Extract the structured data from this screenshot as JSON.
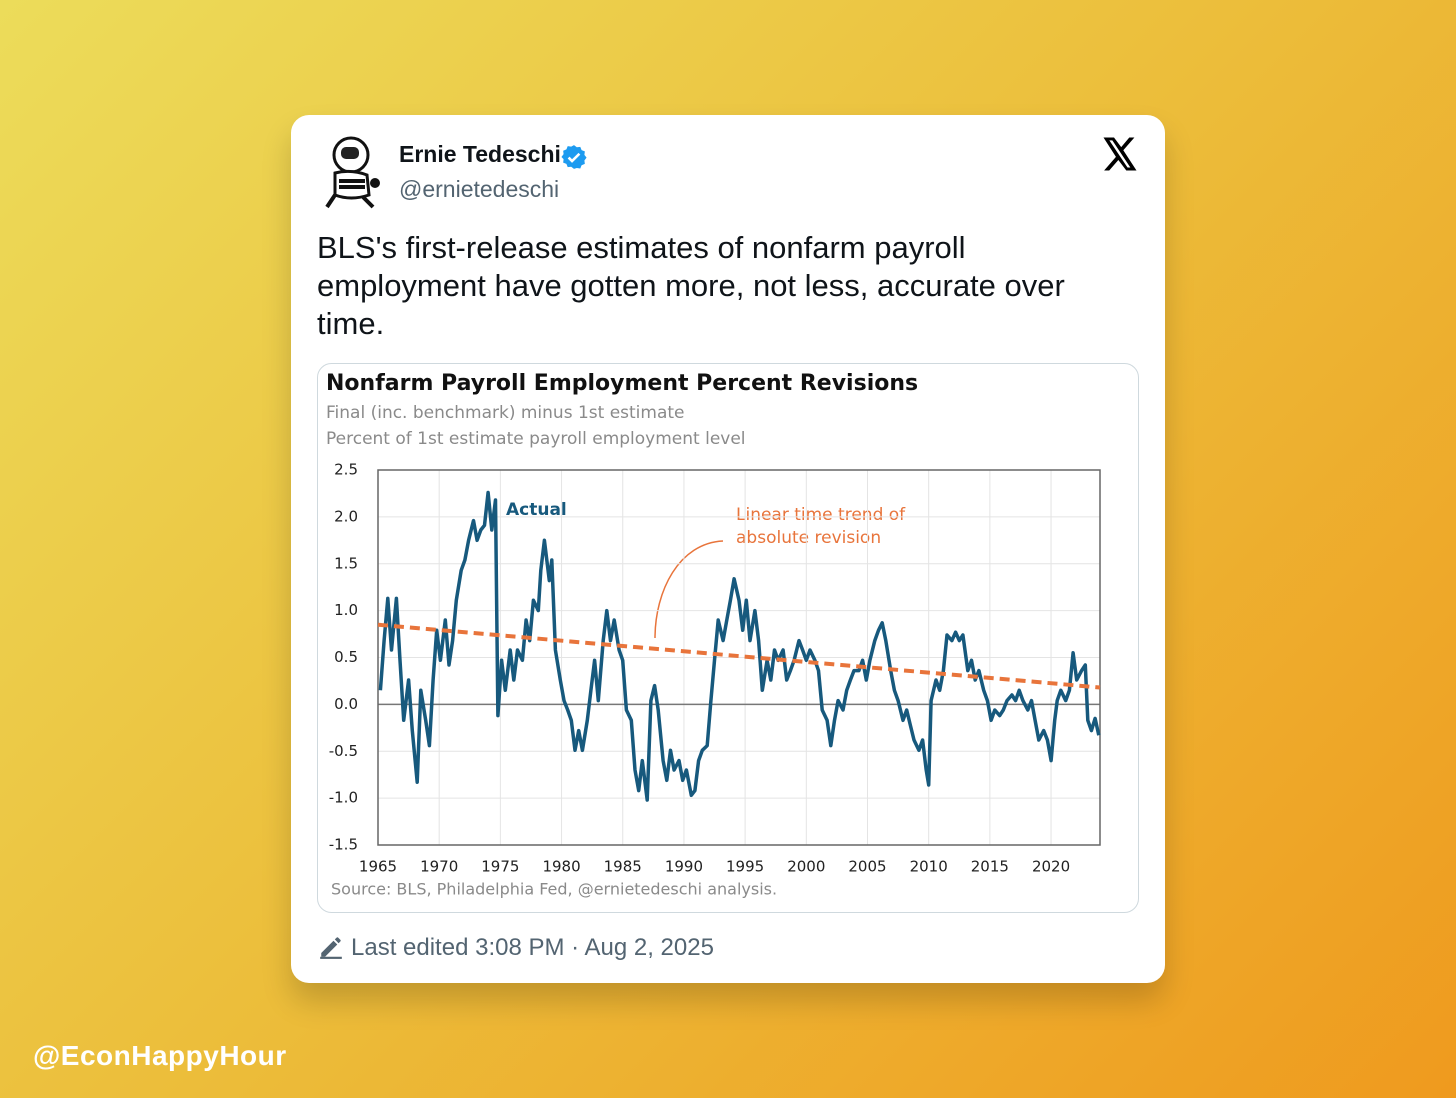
{
  "author": {
    "name": "Ernie Tedeschi",
    "handle": "@ernietedeschi"
  },
  "post_text": "BLS's first-release estimates of nonfarm payroll employment have gotten more, not less, accurate over time.",
  "footer": "Last edited 3:08 PM · Aug 2, 2025",
  "watermark": "@EconHappyHour",
  "chart_data": {
    "type": "line",
    "title": "Nonfarm Payroll Employment Percent Revisions",
    "subtitles": [
      "Final (inc. benchmark) minus 1st estimate",
      "Percent of 1st estimate payroll employment level"
    ],
    "source": "Source: BLS, Philadelphia Fed, @ernietedeschi analysis.",
    "annotations": [
      "Actual",
      "Linear time trend of",
      "absolute revision"
    ],
    "xlim": [
      1965,
      2024
    ],
    "xticks": [
      1965,
      1970,
      1975,
      1980,
      1985,
      1990,
      1995,
      2000,
      2005,
      2010,
      2015,
      2020
    ],
    "ylim": [
      -1.5,
      2.5
    ],
    "yticks": [
      2.5,
      {
        "value": 2,
        "label": "2.0"
      },
      1.5,
      {
        "value": 1,
        "label": "1.0"
      },
      0.5,
      {
        "value": 0,
        "label": "0.0"
      },
      -0.5,
      {
        "value": -1,
        "label": "-1.0"
      },
      -1.5
    ],
    "grid": true,
    "series": [
      {
        "color": "#17597d",
        "dash": false,
        "x": [
          1965.2,
          1965.5,
          1965.8,
          1966.1,
          1966.5,
          1966.8,
          1967.1,
          1967.5,
          1967.8,
          1968.2,
          1968.5,
          1968.9,
          1969.2,
          1969.5,
          1969.8,
          1970.1,
          1970.5,
          1970.8,
          1971.1,
          1971.4,
          1971.8,
          1972.1,
          1972.4,
          1972.8,
          1973.1,
          1973.4,
          1973.7,
          1974.0,
          1974.3,
          1974.6,
          1974.8,
          1975.1,
          1975.4,
          1975.8,
          1976.1,
          1976.4,
          1976.8,
          1977.1,
          1977.4,
          1977.7,
          1978.1,
          1978.3,
          1978.6,
          1979.0,
          1979.2,
          1979.5,
          1979.9,
          1980.2,
          1980.5,
          1980.8,
          1981.1,
          1981.4,
          1981.7,
          1982.1,
          1982.4,
          1982.7,
          1983.0,
          1983.4,
          1983.7,
          1984.0,
          1984.3,
          1984.7,
          1985.0,
          1985.3,
          1985.7,
          1986.0,
          1986.3,
          1986.6,
          1987.0,
          1987.3,
          1987.6,
          1987.9,
          1988.3,
          1988.6,
          1988.9,
          1989.2,
          1989.6,
          1989.9,
          1990.2,
          1990.6,
          1990.9,
          1991.2,
          1991.5,
          1991.9,
          1992.2,
          1992.5,
          1992.8,
          1993.2,
          1993.5,
          1993.8,
          1994.1,
          1994.5,
          1994.8,
          1995.1,
          1995.4,
          1995.8,
          1996.1,
          1996.4,
          1996.8,
          1997.1,
          1997.4,
          1997.7,
          1998.1,
          1998.4,
          1998.7,
          1999.0,
          1999.4,
          1999.7,
          2000.0,
          2000.3,
          2000.7,
          2001.0,
          2001.3,
          2001.7,
          2002.0,
          2002.3,
          2002.6,
          2003.0,
          2003.3,
          2003.6,
          2003.9,
          2004.3,
          2004.6,
          2004.9,
          2005.2,
          2005.6,
          2005.9,
          2006.2,
          2006.5,
          2006.9,
          2007.2,
          2007.5,
          2007.9,
          2008.2,
          2008.5,
          2008.8,
          2009.2,
          2009.5,
          2009.8,
          2010.0,
          2010.2,
          2010.6,
          2010.9,
          2011.2,
          2011.5,
          2011.9,
          2012.2,
          2012.5,
          2012.8,
          2013.2,
          2013.5,
          2013.8,
          2014.1,
          2014.5,
          2014.8,
          2015.1,
          2015.4,
          2015.8,
          2016.1,
          2016.4,
          2016.8,
          2017.1,
          2017.4,
          2017.7,
          2018.1,
          2018.4,
          2018.7,
          2019.0,
          2019.4,
          2019.7,
          2020.0,
          2020.3,
          2020.5,
          2020.8,
          2021.2,
          2021.5,
          2021.8,
          2022.1,
          2022.5,
          2022.8,
          2023.0,
          2023.3,
          2023.6,
          2023.9
        ],
        "values": [
          0.15,
          0.68,
          1.13,
          0.58,
          1.13,
          0.47,
          -0.17,
          0.26,
          -0.28,
          -0.83,
          0.15,
          -0.17,
          -0.44,
          0.26,
          0.79,
          0.47,
          0.9,
          0.42,
          0.68,
          1.11,
          1.43,
          1.54,
          1.75,
          1.96,
          1.75,
          1.86,
          1.91,
          2.26,
          1.86,
          2.18,
          -0.12,
          0.47,
          0.15,
          0.58,
          0.26,
          0.58,
          0.47,
          0.9,
          0.68,
          1.11,
          1.0,
          1.43,
          1.75,
          1.32,
          1.54,
          0.58,
          0.26,
          0.04,
          -0.06,
          -0.17,
          -0.49,
          -0.28,
          -0.49,
          -0.17,
          0.15,
          0.47,
          0.04,
          0.68,
          1.0,
          0.68,
          0.9,
          0.58,
          0.47,
          -0.06,
          -0.17,
          -0.7,
          -0.92,
          -0.6,
          -1.02,
          0.04,
          0.2,
          -0.06,
          -0.6,
          -0.81,
          -0.49,
          -0.7,
          -0.6,
          -0.81,
          -0.7,
          -0.97,
          -0.92,
          -0.6,
          -0.49,
          -0.44,
          0.04,
          0.47,
          0.9,
          0.68,
          0.9,
          1.11,
          1.34,
          1.11,
          0.79,
          1.11,
          0.68,
          1.0,
          0.68,
          0.15,
          0.47,
          0.26,
          0.58,
          0.47,
          0.58,
          0.26,
          0.36,
          0.47,
          0.68,
          0.58,
          0.47,
          0.58,
          0.47,
          0.36,
          -0.06,
          -0.17,
          -0.44,
          -0.17,
          0.04,
          -0.06,
          0.15,
          0.26,
          0.36,
          0.36,
          0.47,
          0.26,
          0.47,
          0.68,
          0.79,
          0.87,
          0.68,
          0.36,
          0.15,
          0.04,
          -0.17,
          -0.06,
          -0.22,
          -0.38,
          -0.49,
          -0.38,
          -0.7,
          -0.86,
          0.04,
          0.26,
          0.15,
          0.36,
          0.74,
          0.68,
          0.77,
          0.68,
          0.74,
          0.36,
          0.47,
          0.26,
          0.36,
          0.15,
          0.04,
          -0.17,
          -0.06,
          -0.12,
          -0.06,
          0.04,
          0.1,
          0.04,
          0.15,
          0.04,
          -0.06,
          0.04,
          -0.17,
          -0.38,
          -0.28,
          -0.38,
          -0.6,
          -0.17,
          0.04,
          0.15,
          0.04,
          0.15,
          0.55,
          0.26,
          0.36,
          0.42,
          -0.17,
          -0.28,
          -0.15,
          -0.33
        ]
      },
      {
        "color": "#e8743b",
        "dash": true,
        "x": [
          1965,
          2024
        ],
        "values": [
          0.85,
          0.18
        ]
      }
    ]
  }
}
